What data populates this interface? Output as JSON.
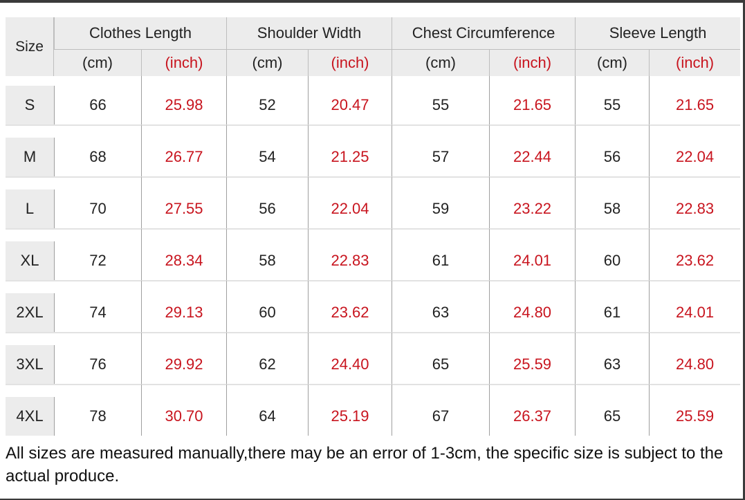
{
  "table": {
    "size_header": "Size",
    "groups": [
      "Clothes Length",
      "Shoulder Width",
      "Chest Circumference",
      "Sleeve Length"
    ],
    "units": [
      "(cm)",
      "(inch)"
    ],
    "rows": [
      {
        "size": "S",
        "values": [
          "66",
          "25.98",
          "52",
          "20.47",
          "55",
          "21.65",
          "55",
          "21.65"
        ]
      },
      {
        "size": "M",
        "values": [
          "68",
          "26.77",
          "54",
          "21.25",
          "57",
          "22.44",
          "56",
          "22.04"
        ]
      },
      {
        "size": "L",
        "values": [
          "70",
          "27.55",
          "56",
          "22.04",
          "59",
          "23.22",
          "58",
          "22.83"
        ]
      },
      {
        "size": "XL",
        "values": [
          "72",
          "28.34",
          "58",
          "22.83",
          "61",
          "24.01",
          "60",
          "23.62"
        ]
      },
      {
        "size": "2XL",
        "values": [
          "74",
          "29.13",
          "60",
          "23.62",
          "63",
          "24.80",
          "61",
          "24.01"
        ]
      },
      {
        "size": "3XL",
        "values": [
          "76",
          "29.92",
          "62",
          "24.40",
          "65",
          "25.59",
          "63",
          "24.80"
        ]
      },
      {
        "size": "4XL",
        "values": [
          "78",
          "30.70",
          "64",
          "25.19",
          "67",
          "26.37",
          "65",
          "25.59"
        ]
      }
    ]
  },
  "note": "All sizes are measured manually,there may be an error of 1-3cm, the specific size is subject to the actual produce.",
  "colors": {
    "inch_text": "#c8141e",
    "header_bg": "#ececec"
  }
}
